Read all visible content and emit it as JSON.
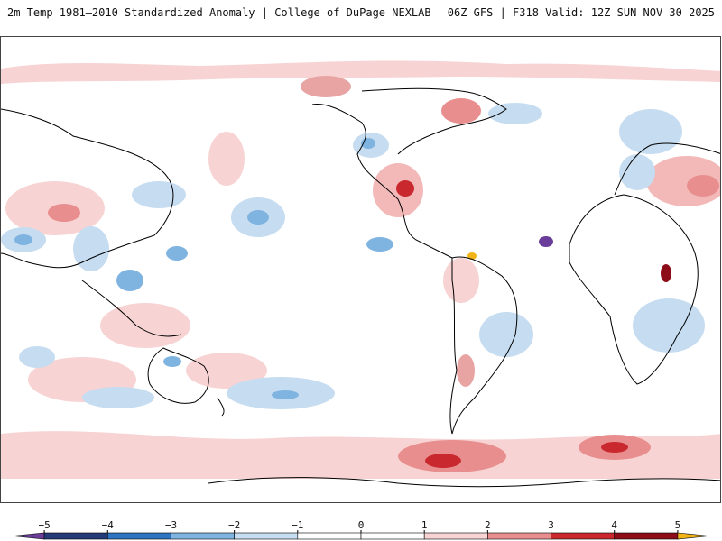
{
  "header": {
    "left_title": "2m Temp 1981–2010 Standardized Anomaly | College of DuPage NEXLAB",
    "right_title": "06Z GFS | F318 Valid: 12Z SUN NOV 30 2025"
  },
  "map": {
    "projection": "equirectangular",
    "central_meridian": "180",
    "background_color": "#ffffff",
    "coastline_color": "#000000"
  },
  "colorbar": {
    "ticks": [
      "−5",
      "−4",
      "−3",
      "−2",
      "−1",
      "0",
      "1",
      "2",
      "3",
      "4",
      "5"
    ],
    "bins": [
      {
        "from": -5.5,
        "to": -5,
        "color": "#6a3d9a"
      },
      {
        "from": -5,
        "to": -4,
        "color": "#253b78"
      },
      {
        "from": -4,
        "to": -3,
        "color": "#2f74c0"
      },
      {
        "from": -3,
        "to": -2,
        "color": "#7fb3e0"
      },
      {
        "from": -2,
        "to": -1,
        "color": "#c6dcf0"
      },
      {
        "from": -1,
        "to": 0,
        "color": "#ffffff"
      },
      {
        "from": 0,
        "to": 1,
        "color": "#ffffff"
      },
      {
        "from": 1,
        "to": 2,
        "color": "#f8d3d3"
      },
      {
        "from": 2,
        "to": 3,
        "color": "#e88e8e"
      },
      {
        "from": 3,
        "to": 4,
        "color": "#c8282e"
      },
      {
        "from": 4,
        "to": 5,
        "color": "#8c0d17"
      },
      {
        "from": 5,
        "to": 5.5,
        "color": "#f2b316"
      }
    ]
  }
}
